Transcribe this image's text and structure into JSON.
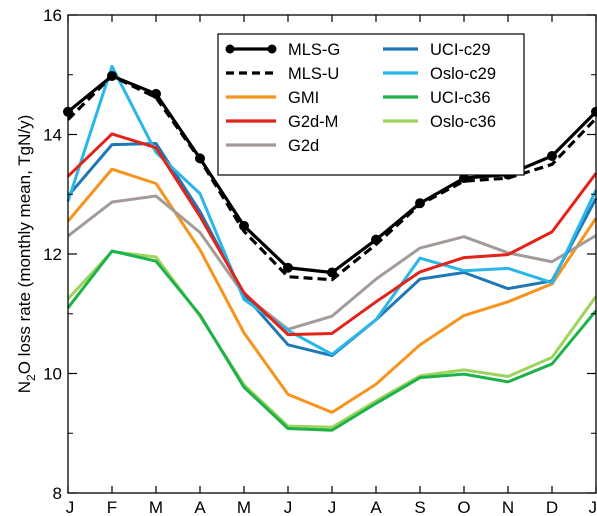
{
  "chart_data": {
    "type": "line",
    "title": "",
    "xlabel": "",
    "ylabel": {
      "prefix": "N",
      "subscript": "2",
      "suffix": "O loss rate (monthly mean, TgN/y)"
    },
    "categories": [
      "J",
      "F",
      "M",
      "A",
      "M",
      "J",
      "J",
      "A",
      "S",
      "O",
      "N",
      "D",
      "J"
    ],
    "ylim": [
      8,
      16
    ],
    "yticks_major": [
      "8",
      "10",
      "12",
      "14",
      "16"
    ],
    "yticks_minor": [
      9,
      11,
      13,
      15
    ],
    "grid": false,
    "legend_placement": "top-right",
    "series": [
      {
        "name": "MLS-G",
        "color": "#000000",
        "style": "solid-markers",
        "values": [
          14.38,
          14.98,
          14.68,
          13.6,
          12.47,
          11.77,
          11.69,
          12.24,
          12.85,
          13.27,
          13.33,
          13.64,
          14.38
        ]
      },
      {
        "name": "MLS-U",
        "color": "#000000",
        "style": "dashed",
        "values": [
          14.25,
          14.98,
          14.62,
          13.58,
          12.38,
          11.62,
          11.57,
          12.16,
          12.83,
          13.22,
          13.27,
          13.5,
          14.27
        ]
      },
      {
        "name": "GMI",
        "color": "#f7941d",
        "style": "solid",
        "values": [
          12.55,
          13.42,
          13.18,
          12.07,
          10.68,
          9.65,
          9.35,
          9.82,
          10.48,
          10.97,
          11.2,
          11.5,
          12.6
        ]
      },
      {
        "name": "G2d-M",
        "color": "#e2231a",
        "style": "solid",
        "values": [
          13.3,
          14.01,
          13.78,
          12.63,
          11.35,
          10.65,
          10.67,
          11.2,
          11.7,
          11.94,
          11.99,
          12.37,
          13.35
        ]
      },
      {
        "name": "G2d",
        "color": "#a39b98",
        "style": "solid",
        "values": [
          12.3,
          12.87,
          12.97,
          12.36,
          11.32,
          10.74,
          10.96,
          11.58,
          12.1,
          12.29,
          12.02,
          11.87,
          12.31
        ]
      },
      {
        "name": "UCI-c29",
        "color": "#1f78b4",
        "style": "solid",
        "values": [
          12.97,
          13.83,
          13.85,
          12.71,
          11.32,
          10.48,
          10.3,
          10.9,
          11.58,
          11.69,
          11.42,
          11.55,
          12.93
        ]
      },
      {
        "name": "Oslo-c29",
        "color": "#29b6e8",
        "style": "solid",
        "values": [
          12.88,
          15.14,
          13.7,
          13.01,
          11.24,
          10.72,
          10.32,
          10.9,
          11.93,
          11.72,
          11.76,
          11.52,
          13.07
        ]
      },
      {
        "name": "UCI-c36",
        "color": "#1db34a",
        "style": "solid",
        "values": [
          11.1,
          12.05,
          11.88,
          10.98,
          9.77,
          9.08,
          9.05,
          9.5,
          9.93,
          9.99,
          9.86,
          10.16,
          11.05
        ]
      },
      {
        "name": "Oslo-c36",
        "color": "#9ed35c",
        "style": "solid",
        "values": [
          11.25,
          12.04,
          11.95,
          10.96,
          9.81,
          9.12,
          9.1,
          9.54,
          9.96,
          10.06,
          9.95,
          10.27,
          11.29
        ]
      }
    ]
  }
}
